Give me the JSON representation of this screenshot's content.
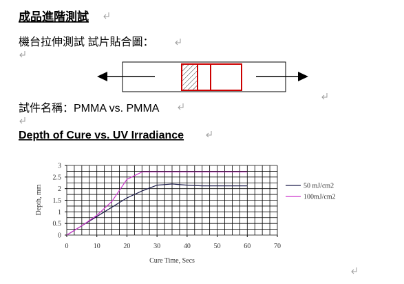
{
  "header": {
    "title": "成品進階測試"
  },
  "paragraphs": [
    "機台拉伸測試  試片貼合圖：",
    "試件名稱：PMMA vs. PMMA"
  ],
  "chart_data": {
    "type": "line",
    "title": "Depth of Cure vs. UV Irradiance",
    "x_label": "Cure Time, Secs",
    "y_label": "Depth, mm",
    "x": [
      0,
      5,
      10,
      15,
      20,
      25,
      30,
      35,
      40,
      45,
      50,
      55,
      60
    ],
    "series": [
      {
        "name": "50 mJ/cm2",
        "color": "#1a1a4a",
        "values": [
          0,
          0.4,
          0.8,
          1.2,
          1.6,
          1.9,
          2.15,
          2.2,
          2.15,
          2.12,
          2.12,
          2.12,
          2.12
        ]
      },
      {
        "name": "100mJ/cm2",
        "color": "#cc33cc",
        "values": [
          0,
          0.4,
          0.85,
          1.45,
          2.4,
          2.72,
          2.72,
          2.72,
          2.72,
          2.72,
          2.72,
          2.72,
          2.72
        ]
      }
    ],
    "xlim": [
      0,
      70
    ],
    "xticks": [
      0,
      10,
      20,
      30,
      40,
      50,
      60,
      70
    ],
    "ylim": [
      0,
      3
    ],
    "yticks": [
      0,
      0.5,
      1,
      1.5,
      2,
      2.5,
      3
    ],
    "grid": true,
    "x_grid_step": 2.5,
    "y_grid_step": 0.25
  }
}
